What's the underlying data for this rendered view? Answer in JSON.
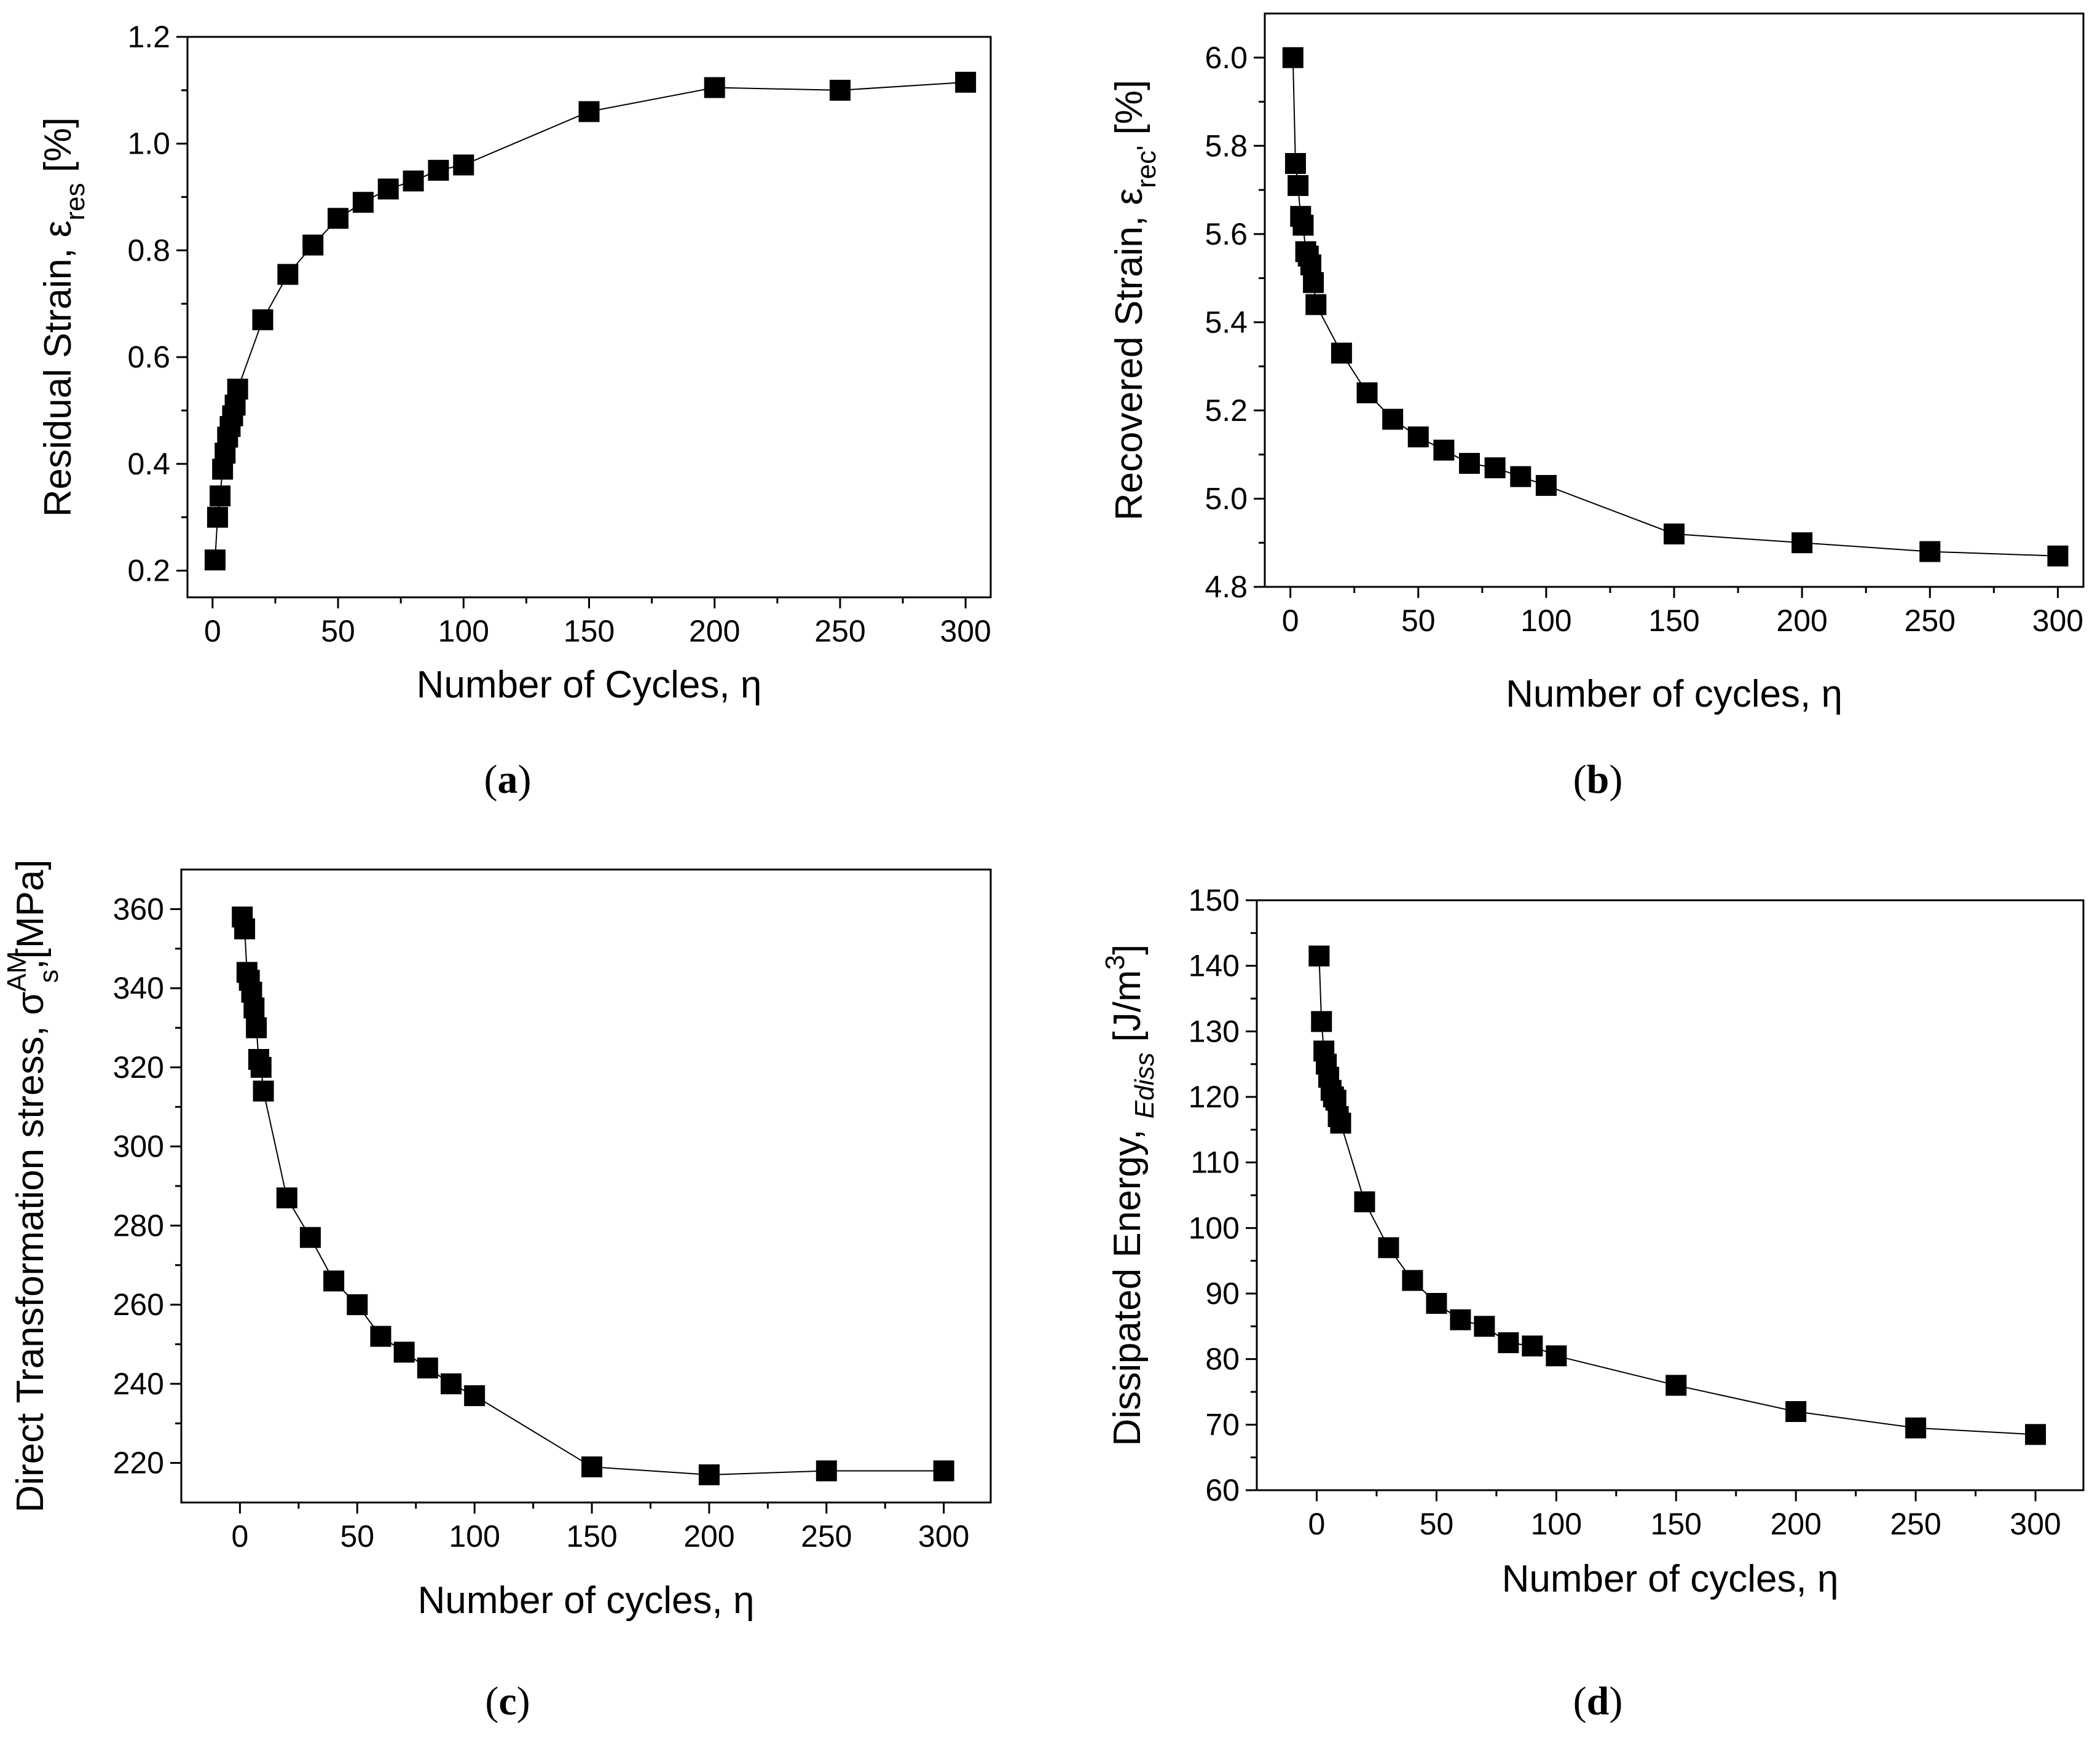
{
  "chart_data": [
    {
      "type": "line",
      "panel": "a",
      "caption": {
        "open": "(",
        "letter": "a",
        "close": ")"
      },
      "xlabel": "Number of Cycles, η",
      "ylabel": {
        "main": "Residual Strain, ε",
        "sub": "res",
        "tail": " [%]",
        "sup": ""
      },
      "xlim": [
        -10,
        310
      ],
      "ylim": [
        0.15,
        1.2
      ],
      "xticks": [
        0,
        50,
        100,
        150,
        200,
        250,
        300
      ],
      "yticks": [
        0.2,
        0.4,
        0.6,
        0.8,
        1.0,
        1.2
      ],
      "xtick_labels": [
        "0",
        "50",
        "100",
        "150",
        "200",
        "250",
        "300"
      ],
      "ytick_labels": [
        "0.2",
        "0.4",
        "0.6",
        "0.8",
        "1.0",
        "1.2"
      ],
      "x": [
        1,
        2,
        3,
        4,
        5,
        6,
        7,
        8,
        9,
        10,
        20,
        30,
        40,
        50,
        60,
        70,
        80,
        90,
        100,
        150,
        200,
        250,
        300
      ],
      "y": [
        0.22,
        0.3,
        0.34,
        0.39,
        0.42,
        0.45,
        0.47,
        0.49,
        0.51,
        0.54,
        0.67,
        0.755,
        0.81,
        0.86,
        0.89,
        0.915,
        0.93,
        0.95,
        0.96,
        1.06,
        1.105,
        1.1,
        1.115
      ]
    },
    {
      "type": "line",
      "panel": "b",
      "caption": {
        "open": "(",
        "letter": "b",
        "close": ")"
      },
      "xlabel": "Number of cycles, η",
      "ylabel": {
        "main": "Recovered Strain, ε",
        "sub": "rec'",
        "tail": " [%]",
        "sup": ""
      },
      "xlim": [
        -10,
        310
      ],
      "ylim": [
        4.8,
        6.1
      ],
      "xticks": [
        0,
        50,
        100,
        150,
        200,
        250,
        300
      ],
      "yticks": [
        4.8,
        5.0,
        5.2,
        5.4,
        5.6,
        5.8,
        6.0
      ],
      "xtick_labels": [
        "0",
        "50",
        "100",
        "150",
        "200",
        "250",
        "300"
      ],
      "ytick_labels": [
        "4.8",
        "5.0",
        "5.2",
        "5.4",
        "5.6",
        "5.8",
        "6.0"
      ],
      "x": [
        1,
        2,
        3,
        4,
        5,
        6,
        7,
        8,
        9,
        10,
        20,
        30,
        40,
        50,
        60,
        70,
        80,
        90,
        100,
        150,
        200,
        250,
        300
      ],
      "y": [
        6.0,
        5.76,
        5.71,
        5.64,
        5.62,
        5.56,
        5.55,
        5.53,
        5.49,
        5.44,
        5.33,
        5.24,
        5.18,
        5.14,
        5.11,
        5.08,
        5.07,
        5.05,
        5.03,
        4.92,
        4.9,
        4.88,
        4.87
      ]
    },
    {
      "type": "line",
      "panel": "c",
      "caption": {
        "open": "(",
        "letter": "c",
        "close": ")"
      },
      "xlabel": "Number of cycles, η",
      "ylabel": {
        "main": "Direct Transformation stress, σ",
        "sub": "s",
        "tail": ",[MPa]",
        "sup": "AM"
      },
      "xlim": [
        -25,
        320
      ],
      "ylim": [
        210,
        370
      ],
      "xticks": [
        0,
        50,
        100,
        150,
        200,
        250,
        300
      ],
      "yticks": [
        220,
        240,
        260,
        280,
        300,
        320,
        340,
        360
      ],
      "xtick_labels": [
        "0",
        "50",
        "100",
        "150",
        "200",
        "250",
        "300"
      ],
      "ytick_labels": [
        "220",
        "240",
        "260",
        "280",
        "300",
        "320",
        "340",
        "360"
      ],
      "x": [
        1,
        2,
        3,
        4,
        5,
        6,
        7,
        8,
        9,
        10,
        20,
        30,
        40,
        50,
        60,
        70,
        80,
        90,
        100,
        150,
        200,
        250,
        300
      ],
      "y": [
        358,
        355,
        344,
        342,
        339,
        335,
        330,
        322,
        320,
        314,
        287,
        277,
        266,
        260,
        252,
        248,
        244,
        240,
        237,
        219,
        217,
        218,
        218
      ]
    },
    {
      "type": "line",
      "panel": "d",
      "caption": {
        "open": "(",
        "letter": "d",
        "close": ")"
      },
      "xlabel": "Number of cycles, η",
      "ylabel": {
        "main": "Dissipated Energy, ",
        "sub": "Ediss",
        "tail": " [J/m",
        "sup": "3",
        "end": "]"
      },
      "xlim": [
        -25,
        320
      ],
      "ylim": [
        60,
        150
      ],
      "xticks": [
        0,
        50,
        100,
        150,
        200,
        250,
        300
      ],
      "yticks": [
        60,
        70,
        80,
        90,
        100,
        110,
        120,
        130,
        140,
        150
      ],
      "xtick_labels": [
        "0",
        "50",
        "100",
        "150",
        "200",
        "250",
        "300"
      ],
      "ytick_labels": [
        "60",
        "70",
        "80",
        "90",
        "100",
        "110",
        "120",
        "130",
        "140",
        "150"
      ],
      "x": [
        1,
        2,
        3,
        4,
        5,
        6,
        7,
        8,
        9,
        10,
        20,
        30,
        40,
        50,
        60,
        70,
        80,
        90,
        100,
        150,
        200,
        250,
        300
      ],
      "y": [
        141.5,
        131.5,
        127,
        125,
        123,
        121,
        120,
        119.5,
        117,
        116,
        104,
        97,
        92,
        88.5,
        86,
        85,
        82.5,
        82,
        80.5,
        76,
        72,
        69.5,
        68.5
      ]
    }
  ]
}
